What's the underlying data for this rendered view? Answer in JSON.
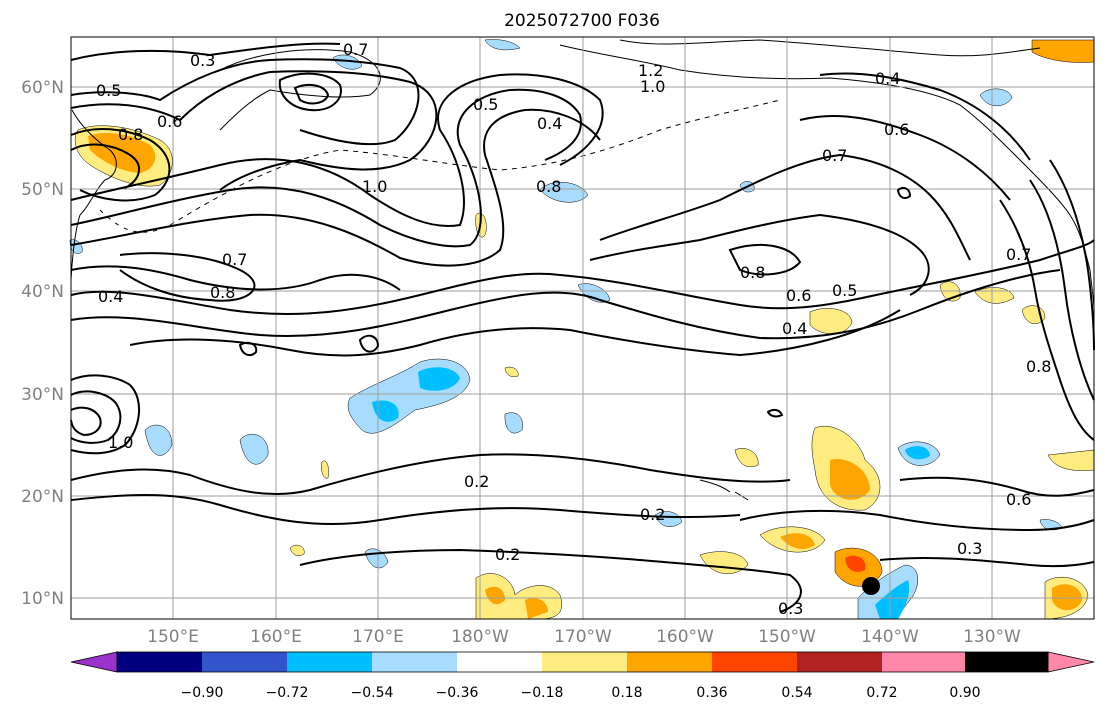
{
  "title": "2025072700 F036",
  "lat_labels": [
    "60°N",
    "50°N",
    "40°N",
    "30°N",
    "20°N",
    "10°N"
  ],
  "lon_labels": [
    "150°E",
    "160°E",
    "170°E",
    "180°W",
    "170°W",
    "160°W",
    "150°W",
    "140°W",
    "130°W"
  ],
  "colorbar": {
    "colors": [
      "#9933cc",
      "#000080",
      "#3355cc",
      "#00bfff",
      "#a8dcff",
      "#ffffff",
      "#ffec80",
      "#ffa500",
      "#ff4500",
      "#b22222",
      "#ff88aa"
    ],
    "tick_labels": [
      "−0.90",
      "−0.72",
      "−0.54",
      "−0.36",
      "−0.18",
      "0.18",
      "0.36",
      "0.54",
      "0.72",
      "0.90"
    ]
  },
  "contour_labels": [
    {
      "text": "0.3"
    },
    {
      "text": "0.7"
    },
    {
      "text": "0.5"
    },
    {
      "text": "0.6"
    },
    {
      "text": "0.8"
    },
    {
      "text": "1.0"
    },
    {
      "text": "0.7"
    },
    {
      "text": "0.8"
    },
    {
      "text": "0.4"
    },
    {
      "text": "0.5"
    },
    {
      "text": "0.4"
    },
    {
      "text": "0.8"
    },
    {
      "text": "1.2"
    },
    {
      "text": "1.0"
    },
    {
      "text": "0.4"
    },
    {
      "text": "0.6"
    },
    {
      "text": "0.7"
    },
    {
      "text": "0.8"
    },
    {
      "text": "0.6"
    },
    {
      "text": "0.5"
    },
    {
      "text": "0.4"
    },
    {
      "text": "0.7"
    },
    {
      "text": "0.8"
    },
    {
      "text": "1.0"
    },
    {
      "text": "0.2"
    },
    {
      "text": "0.2"
    },
    {
      "text": "0.2"
    },
    {
      "text": "0.3"
    },
    {
      "text": "0.6"
    },
    {
      "text": "0.3"
    }
  ]
}
